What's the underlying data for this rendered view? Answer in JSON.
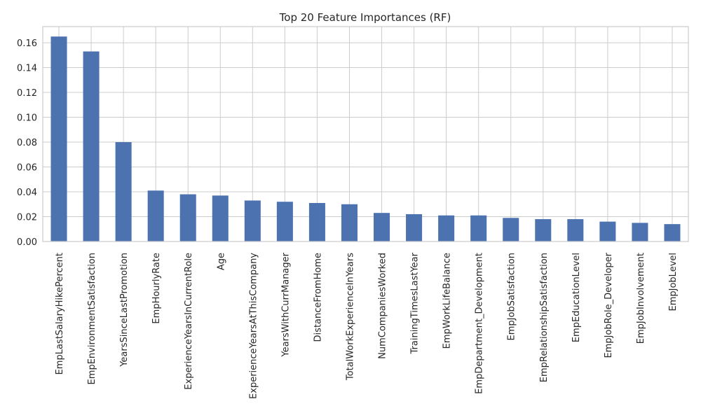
{
  "chart_data": {
    "type": "bar",
    "title": "Top 20 Feature Importances (RF)",
    "xlabel": "",
    "ylabel": "",
    "categories": [
      "EmpLastSalaryHikePercent",
      "EmpEnvironmentSatisfaction",
      "YearsSinceLastPromotion",
      "EmpHourlyRate",
      "ExperienceYearsInCurrentRole",
      "Age",
      "ExperienceYearsAtThisCompany",
      "YearsWithCurrManager",
      "DistanceFromHome",
      "TotalWorkExperienceInYears",
      "NumCompaniesWorked",
      "TrainingTimesLastYear",
      "EmpWorkLifeBalance",
      "EmpDepartment_Development",
      "EmpJobSatisfaction",
      "EmpRelationshipSatisfaction",
      "EmpEducationLevel",
      "EmpJobRole_Developer",
      "EmpJobInvolvement",
      "EmpJobLevel"
    ],
    "values": [
      0.165,
      0.153,
      0.08,
      0.041,
      0.038,
      0.037,
      0.033,
      0.032,
      0.031,
      0.03,
      0.023,
      0.022,
      0.021,
      0.021,
      0.019,
      0.018,
      0.018,
      0.016,
      0.015,
      0.014
    ],
    "ylim": [
      0,
      0.173
    ],
    "yticks": [
      "0.00",
      "0.02",
      "0.04",
      "0.06",
      "0.08",
      "0.10",
      "0.12",
      "0.14",
      "0.16"
    ],
    "grid": true,
    "bar_color": "#4c72b0",
    "grid_color": "#cccccc"
  }
}
